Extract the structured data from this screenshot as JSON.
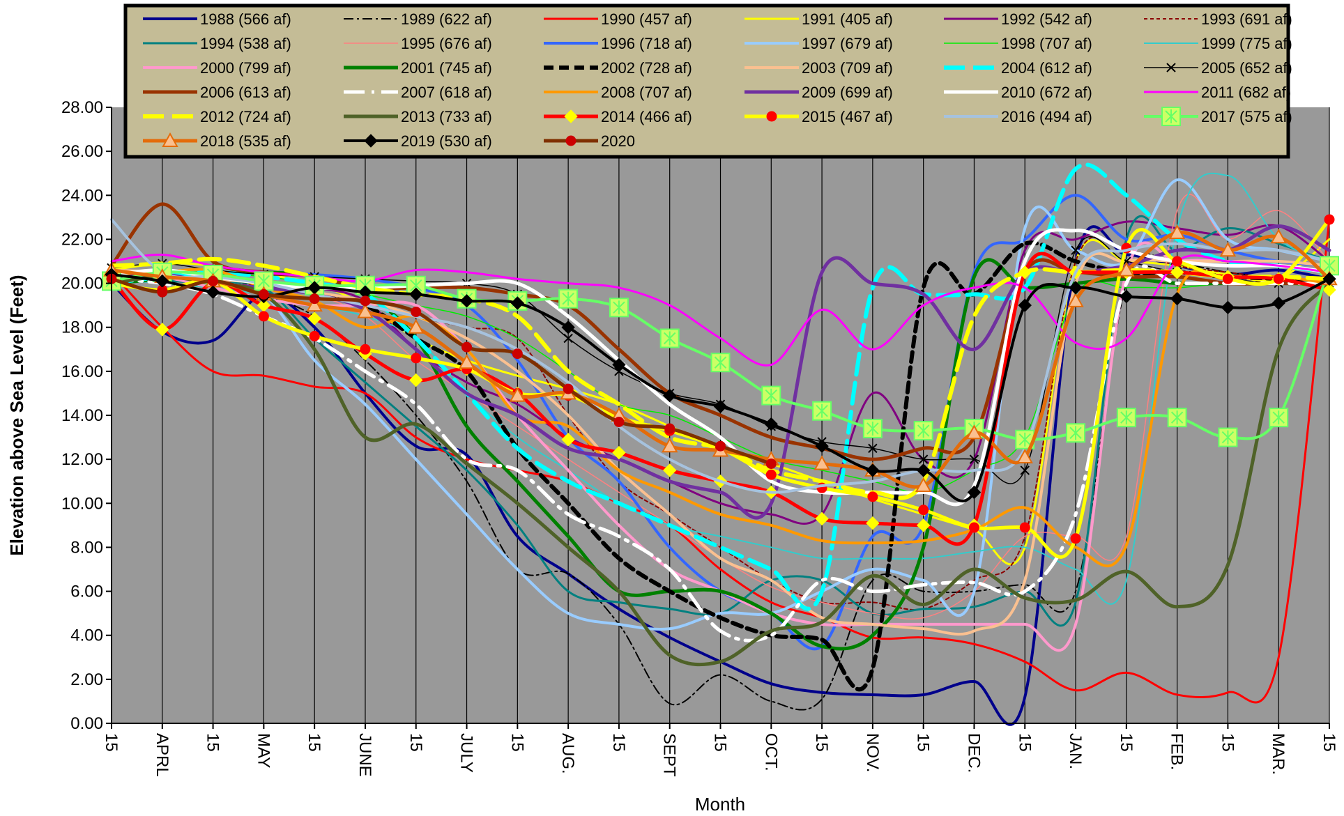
{
  "chart_data": {
    "type": "line",
    "title": "",
    "xlabel": "Month",
    "ylabel": "Elevation above Sea Level (Feet)",
    "ylim": [
      0,
      28
    ],
    "yticks": [
      "0.00",
      "2.00",
      "4.00",
      "6.00",
      "8.00",
      "10.00",
      "12.00",
      "14.00",
      "16.00",
      "18.00",
      "20.00",
      "22.00",
      "24.00",
      "26.00",
      "28.00"
    ],
    "x_labels": [
      "15",
      "APRL",
      "15",
      "MAY",
      "15",
      "JUNE",
      "15",
      "JULY",
      "15",
      "AUG.",
      "15",
      "SEPT",
      "15",
      "OCT.",
      "15",
      "NOV.",
      "15",
      "DEC.",
      "15",
      "JAN.",
      "15",
      "FEB.",
      "15",
      "MAR.",
      "15"
    ],
    "colors": {
      "plot_bg": "#999999",
      "legend_bg": "#c4bc96",
      "legend_border": "#000000"
    },
    "grid": "vertical",
    "legend_position": "top",
    "series": [
      {
        "name": "1988  (566 af)",
        "color": "#00008b",
        "width": 4,
        "dash": "",
        "marker": "",
        "values": [
          20.0,
          17.8,
          17.4,
          19.5,
          18.0,
          15.0,
          12.6,
          12.2,
          8.5,
          6.8,
          5.2,
          3.9,
          2.8,
          1.8,
          1.4,
          1.3,
          1.3,
          1.9,
          1.2,
          21.0,
          21.3,
          20.8,
          20.4,
          20.6,
          20.2
        ]
      },
      {
        "name": "1989  (622 af)",
        "color": "#000000",
        "width": 2,
        "dash": "14,5,3,5",
        "marker": "",
        "values": [
          20.2,
          20.5,
          20.2,
          19.5,
          18.5,
          16.5,
          14.0,
          11.0,
          7.0,
          6.8,
          4.5,
          0.9,
          2.2,
          1.0,
          1.1,
          6.5,
          6.0,
          6.0,
          6.3,
          6.0,
          20.0,
          20.8,
          20.5,
          20.2,
          20.0
        ]
      },
      {
        "name": "1990  (457 af)",
        "color": "#ff0000",
        "width": 3,
        "dash": "",
        "marker": "",
        "values": [
          20.5,
          18.0,
          16.0,
          15.8,
          15.3,
          15.0,
          13.0,
          12.0,
          11.5,
          11.0,
          10.0,
          9.0,
          7.0,
          5.5,
          4.8,
          3.9,
          3.9,
          3.6,
          2.8,
          1.5,
          2.3,
          1.3,
          1.4,
          3.0,
          22.9
        ]
      },
      {
        "name": "1991  (405 af)",
        "color": "#ffff00",
        "width": 3,
        "dash": "",
        "marker": "",
        "values": [
          20.6,
          20.9,
          20.8,
          20.4,
          20.0,
          19.0,
          17.5,
          16.5,
          15.8,
          15.2,
          14.5,
          13.5,
          12.5,
          11.8,
          11.0,
          10.2,
          9.5,
          8.8,
          8.0,
          21.0,
          21.0,
          20.8,
          20.4,
          20.2,
          22.0
        ]
      },
      {
        "name": "1992  (542 af)",
        "color": "#800080",
        "width": 3,
        "dash": "",
        "marker": "",
        "values": [
          20.0,
          20.5,
          20.3,
          20.0,
          19.8,
          19.2,
          17.0,
          15.5,
          14.5,
          13.0,
          12.0,
          11.0,
          10.0,
          9.5,
          9.5,
          15.0,
          12.0,
          12.0,
          21.5,
          22.0,
          22.8,
          22.5,
          22.2,
          22.6,
          21.0
        ]
      },
      {
        "name": "1993  (691 af)",
        "color": "#8b0000",
        "width": 2,
        "dash": "5,4",
        "marker": "",
        "values": [
          20.4,
          20.2,
          20.1,
          19.9,
          19.6,
          19.2,
          18.5,
          18.0,
          17.5,
          14.0,
          11.0,
          9.5,
          8.0,
          6.5,
          5.5,
          5.5,
          5.2,
          6.5,
          8.5,
          21.0,
          21.5,
          20.8,
          20.5,
          20.2,
          20.0
        ]
      },
      {
        "name": "1994  (538 af)",
        "color": "#008080",
        "width": 3,
        "dash": "",
        "marker": "",
        "values": [
          20.0,
          20.1,
          20.0,
          19.8,
          17.5,
          15.5,
          13.5,
          11.5,
          9.0,
          6.0,
          5.5,
          5.2,
          5.0,
          6.5,
          6.5,
          5.0,
          5.2,
          5.3,
          6.0,
          5.5,
          22.0,
          21.5,
          22.5,
          21.8,
          21.0
        ]
      },
      {
        "name": "1995  (676 af)",
        "color": "#ff8080",
        "width": 1.5,
        "dash": "",
        "marker": "",
        "values": [
          20.2,
          20.4,
          20.3,
          20.0,
          19.5,
          18.5,
          16.5,
          15.0,
          13.5,
          12.0,
          10.5,
          9.0,
          7.5,
          6.2,
          5.5,
          5.0,
          4.8,
          6.0,
          8.5,
          8.5,
          8.5,
          23.3,
          22.0,
          23.3,
          21.0
        ]
      },
      {
        "name": "1996  (718 af)",
        "color": "#3366ff",
        "width": 4,
        "dash": "",
        "marker": "",
        "values": [
          20.1,
          20.2,
          20.4,
          20.5,
          20.4,
          20.2,
          19.8,
          19.0,
          16.5,
          13.0,
          11.0,
          8.0,
          6.0,
          5.0,
          3.5,
          8.5,
          9.0,
          20.5,
          22.0,
          24.0,
          22.0,
          22.2,
          21.5,
          21.0,
          20.8
        ]
      },
      {
        "name": "1997  (679 af)",
        "color": "#99ccff",
        "width": 4,
        "dash": "",
        "marker": "",
        "values": [
          20.5,
          20.3,
          20.0,
          19.5,
          16.5,
          14.5,
          12.0,
          9.5,
          7.0,
          5.0,
          4.5,
          4.3,
          5.0,
          5.0,
          6.0,
          7.0,
          6.5,
          6.0,
          22.5,
          21.5,
          21.0,
          24.7,
          22.0,
          21.5,
          21.0
        ]
      },
      {
        "name": "1998  (707 af)",
        "color": "#00ee00",
        "width": 1.5,
        "dash": "",
        "marker": "",
        "values": [
          20.3,
          20.5,
          20.5,
          20.3,
          20.0,
          19.5,
          19.0,
          18.5,
          17.5,
          16.0,
          14.5,
          14.0,
          13.0,
          12.0,
          11.5,
          11.0,
          10.5,
          11.5,
          13.0,
          19.5,
          19.8,
          19.8,
          20.0,
          20.0,
          19.8
        ]
      },
      {
        "name": "1999  (775 af)",
        "color": "#33cccc",
        "width": 2,
        "dash": "",
        "marker": "",
        "values": [
          20.2,
          20.0,
          19.8,
          19.5,
          19.0,
          18.5,
          17.5,
          15.0,
          13.0,
          11.5,
          10.0,
          9.0,
          8.5,
          8.0,
          7.5,
          7.5,
          7.5,
          7.8,
          8.0,
          7.0,
          6.5,
          22.5,
          24.9,
          22.0,
          21.0
        ]
      },
      {
        "name": "2000  (799 af)",
        "color": "#ff99cc",
        "width": 4,
        "dash": "",
        "marker": "",
        "values": [
          20.5,
          20.3,
          19.8,
          19.3,
          19.0,
          19.0,
          19.0,
          17.0,
          14.0,
          11.5,
          9.0,
          7.0,
          6.0,
          5.0,
          4.5,
          4.5,
          4.5,
          4.5,
          4.5,
          4.5,
          20.5,
          21.0,
          21.0,
          20.8,
          20.5
        ]
      },
      {
        "name": "2001  (745 af)",
        "color": "#008000",
        "width": 5,
        "dash": "",
        "marker": "",
        "values": [
          20.0,
          20.2,
          20.4,
          20.5,
          20.3,
          19.5,
          17.5,
          13.5,
          11.0,
          8.5,
          6.0,
          6.0,
          6.0,
          5.0,
          3.5,
          4.0,
          8.0,
          20.3,
          19.8,
          20.0,
          20.2,
          20.0,
          20.0,
          20.0,
          20.0
        ]
      },
      {
        "name": "2002  (728 af)",
        "color": "#000000",
        "width": 6,
        "dash": "14,8",
        "marker": "",
        "values": [
          20.3,
          20.4,
          20.3,
          20.0,
          19.5,
          19.0,
          17.5,
          16.0,
          12.5,
          10.0,
          7.5,
          6.0,
          4.8,
          4.0,
          3.8,
          2.5,
          19.8,
          19.5,
          21.8,
          21.0,
          20.5,
          20.5,
          20.3,
          20.2,
          20.0
        ]
      },
      {
        "name": "2003  (709 af)",
        "color": "#fac090",
        "width": 4,
        "dash": "",
        "marker": "",
        "values": [
          20.6,
          20.5,
          20.2,
          20.0,
          19.6,
          19.2,
          18.5,
          17.5,
          16.0,
          14.0,
          11.5,
          9.5,
          7.5,
          6.5,
          4.8,
          4.5,
          4.3,
          4.2,
          6.5,
          20.0,
          21.0,
          21.0,
          21.0,
          21.0,
          20.8
        ]
      },
      {
        "name": "2004 (612 af)",
        "color": "#00ffff",
        "width": 6,
        "dash": "30,12",
        "marker": "",
        "values": [
          20.0,
          20.3,
          20.5,
          20.3,
          20.0,
          19.5,
          17.5,
          15.0,
          12.5,
          11.0,
          10.0,
          9.0,
          8.0,
          7.0,
          6.0,
          19.8,
          19.5,
          19.5,
          19.8,
          25.2,
          24.0,
          22.0,
          21.0,
          20.8,
          20.5
        ]
      },
      {
        "name": "2005 (652 af)",
        "color": "#000000",
        "width": 1.5,
        "dash": "",
        "marker": "x",
        "values": [
          20.7,
          20.9,
          20.6,
          20.4,
          20.3,
          20.2,
          20.1,
          20.0,
          19.5,
          17.5,
          16.0,
          15.0,
          14.5,
          13.5,
          12.8,
          12.5,
          12.0,
          12.0,
          11.5,
          21.5,
          21.0,
          20.5,
          20.2,
          20.0,
          20.0
        ]
      },
      {
        "name": "2006 (613 af)",
        "color": "#993300",
        "width": 5,
        "dash": "",
        "marker": "",
        "values": [
          20.8,
          23.6,
          21.0,
          20.5,
          20.3,
          19.8,
          19.8,
          19.8,
          19.5,
          19.0,
          17.0,
          15.0,
          14.0,
          13.0,
          12.5,
          12.0,
          12.5,
          13.0,
          20.5,
          20.5,
          20.3,
          20.3,
          20.0,
          20.0,
          20.0
        ]
      },
      {
        "name": "2007 (618 af)",
        "color": "#ffffff",
        "width": 5,
        "dash": "30,10,4,10",
        "marker": "",
        "values": [
          20.2,
          20.0,
          19.5,
          18.5,
          17.5,
          16.0,
          14.5,
          12.0,
          11.5,
          9.5,
          8.5,
          7.0,
          4.2,
          4.0,
          6.5,
          6.0,
          6.3,
          6.4,
          6.0,
          9.5,
          20.0,
          20.0,
          20.0,
          20.0,
          20.0
        ]
      },
      {
        "name": "2008 (707 af)",
        "color": "#ff9900",
        "width": 4,
        "dash": "",
        "marker": "",
        "values": [
          20.3,
          20.5,
          20.6,
          19.8,
          19.2,
          18.0,
          18.5,
          17.0,
          14.0,
          13.5,
          11.5,
          10.5,
          9.5,
          9.0,
          8.3,
          8.2,
          8.3,
          8.8,
          9.8,
          8.0,
          8.1,
          19.5,
          20.2,
          20.3,
          20.0
        ]
      },
      {
        "name": "2009 (699 af)",
        "color": "#7030a0",
        "width": 5,
        "dash": "",
        "marker": "",
        "values": [
          20.2,
          20.4,
          20.0,
          19.8,
          19.5,
          18.8,
          17.0,
          15.0,
          14.0,
          12.5,
          12.0,
          11.0,
          10.5,
          10.0,
          20.5,
          20.0,
          19.5,
          17.0,
          20.5,
          20.5,
          20.8,
          21.5,
          21.5,
          22.6,
          21.5
        ]
      },
      {
        "name": "2010 (672 af)",
        "color": "#ffffff",
        "width": 5,
        "dash": "",
        "marker": "",
        "values": [
          20.4,
          20.6,
          20.3,
          20.0,
          19.8,
          19.8,
          19.9,
          20.0,
          20.0,
          18.5,
          16.5,
          14.5,
          13.0,
          11.0,
          10.5,
          10.5,
          10.5,
          10.8,
          21.0,
          22.4,
          21.5,
          21.0,
          20.8,
          20.8,
          20.5
        ]
      },
      {
        "name": "2011 (682 af)",
        "color": "#ff00ff",
        "width": 3,
        "dash": "",
        "marker": "",
        "values": [
          21.0,
          21.3,
          20.8,
          20.5,
          20.3,
          20.1,
          20.6,
          20.5,
          20.2,
          20.0,
          19.8,
          19.0,
          17.5,
          16.3,
          18.8,
          17.0,
          19.0,
          19.8,
          19.8,
          17.3,
          17.5,
          21.0,
          21.0,
          20.8,
          20.5
        ]
      },
      {
        "name": "2012 (724 af)",
        "color": "#ffff00",
        "width": 6,
        "dash": "30,12",
        "marker": "",
        "values": [
          20.8,
          20.9,
          21.1,
          20.8,
          20.3,
          19.8,
          19.5,
          19.3,
          18.5,
          16.0,
          14.5,
          13.0,
          12.5,
          11.5,
          11.0,
          10.5,
          11.0,
          18.5,
          20.5,
          20.5,
          20.6,
          20.5,
          20.3,
          20.3,
          20.2
        ]
      },
      {
        "name": "2013 (733 af)",
        "color": "#4f6228",
        "width": 5,
        "dash": "",
        "marker": "",
        "values": [
          20.0,
          20.3,
          20.0,
          19.5,
          17.0,
          13.0,
          13.6,
          11.8,
          10.0,
          8.0,
          6.0,
          3.1,
          2.8,
          4.2,
          4.6,
          6.7,
          5.4,
          7.0,
          5.7,
          5.6,
          6.9,
          5.3,
          7.2,
          17.0,
          20.0
        ]
      },
      {
        "name": "2014 (466 af)",
        "color": "#ff0000",
        "width": 5,
        "dash": "",
        "marker": "diamond",
        "markerFill": "#ffff00",
        "values": [
          20.2,
          17.9,
          20.0,
          19.0,
          18.4,
          16.8,
          15.6,
          16.1,
          15.0,
          12.9,
          12.3,
          11.5,
          11.0,
          10.5,
          9.3,
          9.1,
          9.0,
          9.0,
          20.5,
          20.5,
          20.5,
          20.5,
          20.3,
          20.2,
          19.7
        ]
      },
      {
        "name": "2015 (467 af)",
        "color": "#ffff00",
        "width": 5,
        "dash": "",
        "marker": "circle",
        "markerFill": "#ff0000",
        "values": [
          20.0,
          19.7,
          20.1,
          18.5,
          17.6,
          17.0,
          16.6,
          16.1,
          15.0,
          14.9,
          13.9,
          13.3,
          12.5,
          11.3,
          10.7,
          10.3,
          9.7,
          8.9,
          8.9,
          8.4,
          21.6,
          21.0,
          20.2,
          20.2,
          22.9
        ]
      },
      {
        "name": "2016 (494 af)",
        "color": "#a6c2de",
        "width": 4,
        "dash": "",
        "marker": "",
        "values": [
          22.9,
          20.5,
          20.3,
          20.0,
          19.5,
          19.0,
          18.5,
          18.0,
          17.0,
          15.5,
          13.5,
          12.0,
          11.0,
          10.5,
          10.8,
          11.0,
          11.5,
          11.5,
          12.5,
          20.5,
          21.5,
          21.8,
          21.5,
          21.5,
          21.0
        ]
      },
      {
        "name": "2017 (575 af)",
        "color": "#66ff66",
        "width": 4,
        "dash": "",
        "marker": "square",
        "markerFill": "#ccff66",
        "values": [
          20.1,
          20.5,
          20.4,
          20.1,
          19.9,
          19.9,
          19.9,
          19.3,
          19.2,
          19.3,
          18.9,
          17.5,
          16.4,
          14.9,
          14.2,
          13.4,
          13.3,
          13.4,
          12.9,
          13.2,
          13.9,
          13.9,
          13.0,
          13.9,
          20.8
        ]
      },
      {
        "name": "2018 (535 af)",
        "color": "#e46c0a",
        "width": 5,
        "dash": "",
        "marker": "triangle",
        "markerFill": "#fac090",
        "values": [
          20.6,
          20.3,
          20.1,
          19.5,
          19.0,
          18.7,
          18.0,
          16.4,
          14.9,
          15.0,
          14.0,
          12.6,
          12.4,
          12.0,
          11.8,
          11.5,
          10.8,
          13.2,
          12.1,
          19.2,
          20.6,
          22.3,
          21.5,
          22.1,
          20.2
        ]
      },
      {
        "name": "2019 (530 af)",
        "color": "#000000",
        "width": 4,
        "dash": "",
        "marker": "diamond",
        "markerFill": "#000000",
        "values": [
          20.4,
          20.1,
          19.6,
          19.4,
          19.8,
          19.6,
          19.5,
          19.2,
          19.1,
          18.0,
          16.3,
          14.9,
          14.4,
          13.6,
          12.6,
          11.5,
          11.5,
          10.5,
          19.0,
          19.8,
          19.4,
          19.3,
          18.9,
          19.1,
          20.2
        ]
      },
      {
        "name": "2020",
        "color": "#7f3000",
        "width": 5,
        "dash": "",
        "marker": "circle",
        "markerFill": "#cc0000",
        "values": [
          20.2,
          19.6,
          20.1,
          19.5,
          19.3,
          19.2,
          18.7,
          17.1,
          16.8,
          15.2,
          13.7,
          13.4,
          12.6,
          11.8
        ]
      }
    ]
  }
}
